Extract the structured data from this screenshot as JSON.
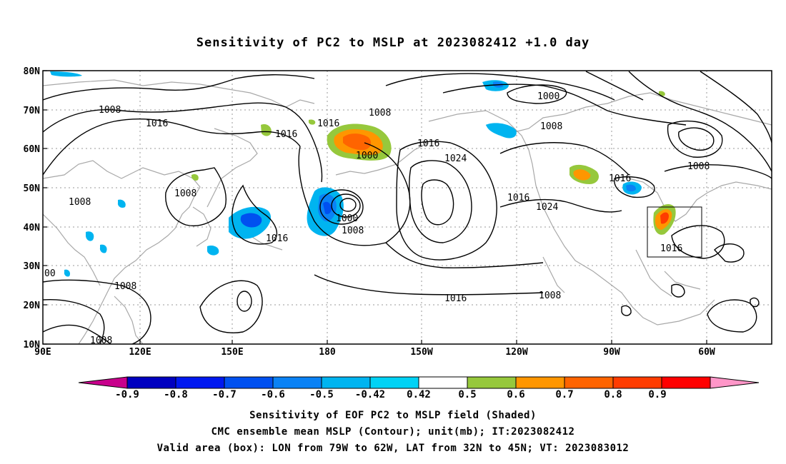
{
  "title": "Sensitivity of PC2 to MSLP at 2023082412 +1.0 day",
  "lat_labels": [
    "80N",
    "70N",
    "60N",
    "50N",
    "40N",
    "30N",
    "20N",
    "10N"
  ],
  "lon_labels": [
    "90E",
    "120E",
    "150E",
    "180",
    "150W",
    "120W",
    "90W",
    "60W"
  ],
  "contour_labels": [
    "1008",
    "1016",
    "1008",
    "1008",
    "1008",
    "1016",
    "1016",
    "1008",
    "1000",
    "1016",
    "1024",
    "1000",
    "1008",
    "1000",
    "1008",
    "1016",
    "1016",
    "1024",
    "1016",
    "1008",
    "1016",
    "1008",
    "1016",
    "00",
    "1008"
  ],
  "colorbar": {
    "labels": [
      "-0.9",
      "-0.8",
      "-0.7",
      "-0.6",
      "-0.5",
      "-0.42",
      "0.42",
      "0.5",
      "0.6",
      "0.7",
      "0.8",
      "0.9"
    ],
    "colors": [
      "#c8008c",
      "#0000c0",
      "#0018f0",
      "#0050f0",
      "#0a82f5",
      "#00b4f0",
      "#00d2f5",
      "#ffffff",
      "#96c83c",
      "#ff9600",
      "#ff6400",
      "#ff3c00",
      "#ff0000",
      "#ff96c8"
    ]
  },
  "captions": [
    "Sensitivity of EOF PC2 to MSLP field (Shaded)",
    "CMC ensemble mean MSLP (Contour); unit(mb); IT:2023082412",
    "Valid area (box): LON from 79W to 62W, LAT from 32N to 45N; VT: 2023083012"
  ]
}
